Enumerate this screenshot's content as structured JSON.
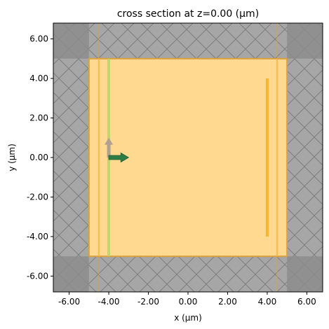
{
  "chart_data": {
    "type": "diagram",
    "title": "cross section at z=0.00 (μm)",
    "xlabel": "x (μm)",
    "ylabel": "y (μm)",
    "xlim": [
      -6.8,
      6.8
    ],
    "ylim": [
      -6.8,
      6.8
    ],
    "xticks": [
      -6,
      -4,
      -2,
      0,
      2,
      4,
      6
    ],
    "yticks": [
      -6,
      -4,
      -2,
      0,
      2,
      4,
      6
    ],
    "xtick_labels": [
      "-6.00",
      "-4.00",
      "-2.00",
      "0.00",
      "2.00",
      "4.00",
      "6.00"
    ],
    "ytick_labels": [
      "-6.00",
      "-4.00",
      "-2.00",
      "0.00",
      "2.00",
      "4.00",
      "6.00"
    ],
    "simulation_domain": {
      "x": [
        -5,
        5
      ],
      "y": [
        -5,
        5
      ],
      "color": "#ffd990"
    },
    "pml_inner_x": [
      -4.5,
      4.5
    ],
    "source_plane": {
      "x": -4.0,
      "y": [
        -5,
        5
      ],
      "color": "#b8d86a"
    },
    "monitor_plane": {
      "x": 4.0,
      "y": [
        -4,
        4
      ],
      "color": "#f5b731"
    },
    "source_arrow_y": {
      "x": -4.0,
      "y": 0,
      "dy": 1.0,
      "color": "#b0a090"
    },
    "source_arrow_x": {
      "x": -4.0,
      "y": 0,
      "dx": 1.0,
      "color": "#2e7d45"
    },
    "colors": {
      "background_gray": "#a6a6a6",
      "corner_gray": "#8c8c8c",
      "hatch": "#7a7a7a",
      "boundary": "#d8a040"
    }
  }
}
